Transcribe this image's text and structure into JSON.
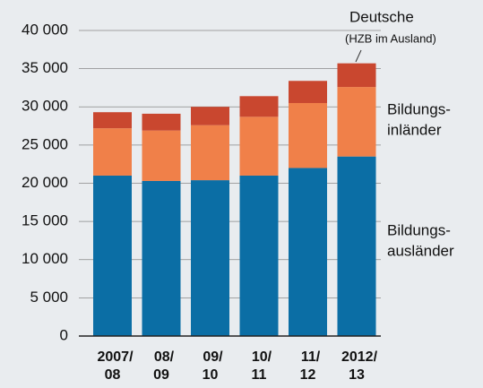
{
  "chart_data": {
    "type": "stacked-bar",
    "categories": [
      [
        "2007/",
        "08"
      ],
      [
        "08/",
        "09"
      ],
      [
        "09/",
        "10"
      ],
      [
        "10/",
        "11"
      ],
      [
        "11/",
        "12"
      ],
      [
        "2012/",
        "13"
      ]
    ],
    "series": [
      {
        "name": [
          "Bildungs-",
          "ausländer"
        ],
        "color": "#0b6ea5",
        "values": [
          21000,
          20300,
          20400,
          21000,
          22000,
          23500
        ]
      },
      {
        "name": [
          "Bildungs-",
          "inländer"
        ],
        "color": "#f08049",
        "values": [
          6200,
          6600,
          7200,
          7700,
          8500,
          9100
        ]
      },
      {
        "name": [
          "Deutsche",
          "(HZB im Ausland)"
        ],
        "color": "#c9472f",
        "values": [
          2100,
          2200,
          2400,
          2700,
          2900,
          3100
        ]
      }
    ],
    "ylim": [
      0,
      40000
    ],
    "yticks": [
      0,
      {
        "value": 5000,
        "label": "5 000"
      },
      {
        "value": 10000,
        "label": "10 000"
      },
      {
        "value": 15000,
        "label": "15 000"
      },
      {
        "value": 20000,
        "label": "20 000"
      },
      {
        "value": 25000,
        "label": "25 000"
      },
      {
        "value": 30000,
        "label": "30 000"
      },
      {
        "value": 35000,
        "label": "35 000"
      },
      {
        "value": 40000,
        "label": "40 000"
      }
    ],
    "grid": true
  }
}
